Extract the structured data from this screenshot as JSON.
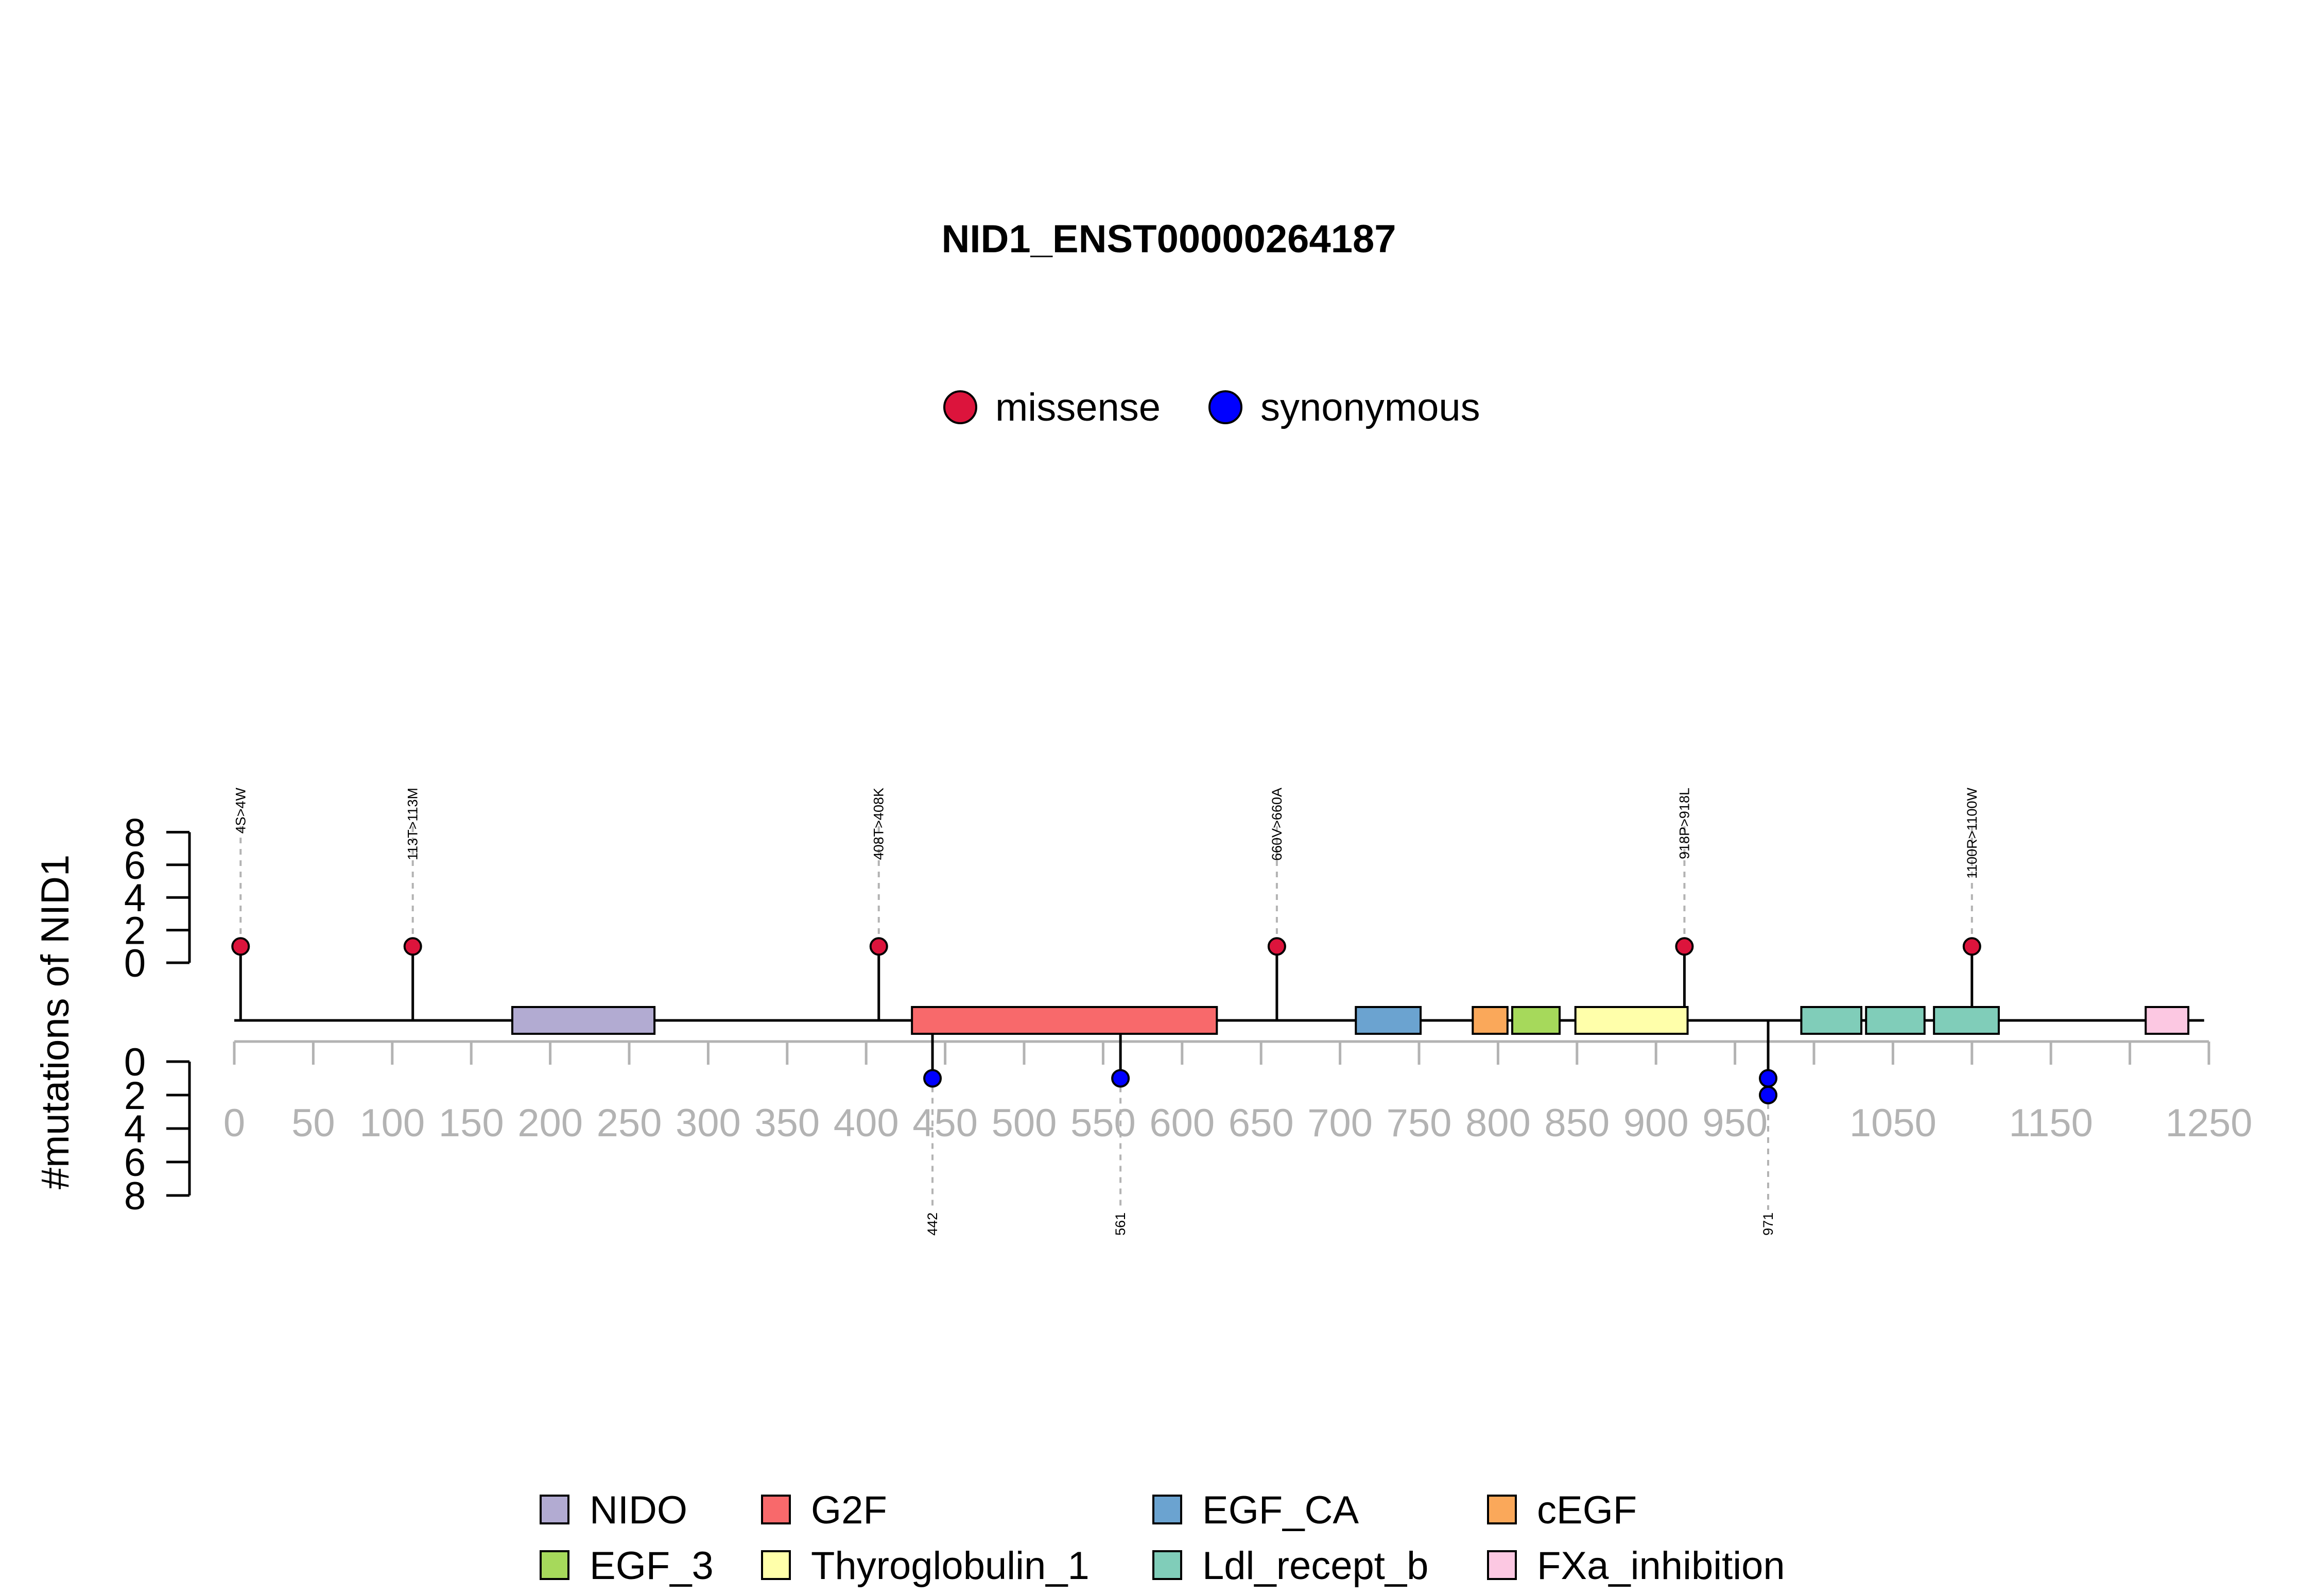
{
  "chart_data": {
    "type": "lollipop",
    "title": "NID1_ENST00000264187",
    "ylabel": "#mutations of NID1",
    "xlim": [
      0,
      1250
    ],
    "x_ticks": [
      0,
      50,
      100,
      150,
      200,
      250,
      300,
      350,
      400,
      450,
      500,
      550,
      600,
      650,
      700,
      750,
      800,
      850,
      900,
      950,
      1050,
      1150,
      1250
    ],
    "x_minor_ticks": [
      1000,
      1100,
      1200
    ],
    "y_ticks": [
      0,
      2,
      4,
      6,
      8
    ],
    "y_range": [
      0,
      8
    ],
    "protein_length": 1247,
    "mutation_legend": [
      {
        "name": "missense",
        "color": "#DC143C"
      },
      {
        "name": "synonymous",
        "color": "#0000FF"
      }
    ],
    "mutations_top": [
      {
        "position": 4,
        "count": 1,
        "label": "4S>4W",
        "type": "missense"
      },
      {
        "position": 113,
        "count": 1,
        "label": "113T>113M",
        "type": "missense"
      },
      {
        "position": 408,
        "count": 1,
        "label": "408T>408K",
        "type": "missense"
      },
      {
        "position": 660,
        "count": 1,
        "label": "660V>660A",
        "type": "missense"
      },
      {
        "position": 918,
        "count": 1,
        "label": "918P>918L",
        "type": "missense"
      },
      {
        "position": 1100,
        "count": 1,
        "label": "1100R>1100W",
        "type": "missense"
      }
    ],
    "mutations_bottom": [
      {
        "position": 442,
        "count": 1,
        "label": "442",
        "type": "synonymous"
      },
      {
        "position": 561,
        "count": 1,
        "label": "561",
        "type": "synonymous"
      },
      {
        "position": 971,
        "count": 2,
        "label": "971",
        "type": "synonymous"
      }
    ],
    "domains": [
      {
        "name": "NIDO",
        "start": 176,
        "end": 266,
        "color": "#B2ABD2"
      },
      {
        "name": "G2F",
        "start": 429,
        "end": 622,
        "color": "#F8696B"
      },
      {
        "name": "EGF_CA",
        "start": 710,
        "end": 751,
        "color": "#6BA3D0"
      },
      {
        "name": "cEGF",
        "start": 784,
        "end": 806,
        "color": "#FAA85A"
      },
      {
        "name": "EGF_3",
        "start": 809,
        "end": 839,
        "color": "#A6D95B"
      },
      {
        "name": "Thyroglobulin_1",
        "start": 849,
        "end": 920,
        "color": "#FFFFAA"
      },
      {
        "name": "Ldl_recept_b",
        "start": 992,
        "end": 1030,
        "color": "#80CDB9"
      },
      {
        "name": "Ldl_recept_b",
        "start": 1033,
        "end": 1070,
        "color": "#80CDB9"
      },
      {
        "name": "Ldl_recept_b",
        "start": 1076,
        "end": 1117,
        "color": "#80CDB9"
      },
      {
        "name": "FXa_inhibition",
        "start": 1210,
        "end": 1237,
        "color": "#FCC8E2"
      }
    ],
    "domain_legend": [
      {
        "name": "NIDO",
        "color": "#B2ABD2"
      },
      {
        "name": "G2F",
        "color": "#F8696B"
      },
      {
        "name": "EGF_CA",
        "color": "#6BA3D0"
      },
      {
        "name": "cEGF",
        "color": "#FAA85A"
      },
      {
        "name": "EGF_3",
        "color": "#A6D95B"
      },
      {
        "name": "Thyroglobulin_1",
        "color": "#FFFFAA"
      },
      {
        "name": "Ldl_recept_b",
        "color": "#80CDB9"
      },
      {
        "name": "FXa_inhibition",
        "color": "#FCC8E2"
      }
    ]
  }
}
